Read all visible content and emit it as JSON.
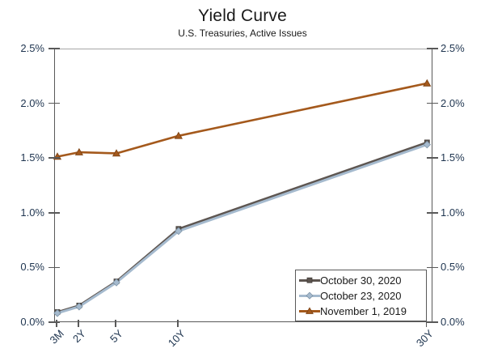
{
  "title": "Yield Curve",
  "subtitle": "U.S. Treasuries, Active Issues",
  "chart_data": {
    "type": "line",
    "categories": [
      "3M",
      "2Y",
      "5Y",
      "10Y",
      "30Y"
    ],
    "category_years": [
      0.25,
      2,
      5,
      10,
      30
    ],
    "x_scale": "linear in years to maturity",
    "series": [
      {
        "name": "October 30, 2020",
        "marker": "square",
        "color": "#5d5550",
        "edge": "#423c38",
        "values": [
          0.1,
          0.16,
          0.38,
          0.86,
          1.65
        ]
      },
      {
        "name": "October 23, 2020",
        "marker": "diamond",
        "color": "#a5bace",
        "edge": "#7f95a7",
        "values": [
          0.09,
          0.15,
          0.37,
          0.84,
          1.63
        ]
      },
      {
        "name": "November 1, 2019",
        "marker": "triangle",
        "color": "#a4591c",
        "edge": "#7a4114",
        "values": [
          1.52,
          1.56,
          1.55,
          1.71,
          2.19
        ]
      }
    ],
    "ylim": [
      0,
      2.5
    ],
    "y_tick_values": [
      0,
      0.5,
      1,
      1.5,
      2,
      2.5
    ],
    "y_tick_labels": [
      "0.0%",
      "0.5%",
      "1.0%",
      "1.5%",
      "2.0%",
      "2.5%"
    ],
    "dual_y_axis": true,
    "grid": false,
    "legend_position": "bottom-right",
    "xlabel": "",
    "ylabel": ""
  },
  "colors": {
    "axis": "#595959",
    "top_border": "#a6a6a6",
    "tick_label": "#1f3550",
    "text": "#1a1a1a",
    "background": "#ffffff"
  }
}
